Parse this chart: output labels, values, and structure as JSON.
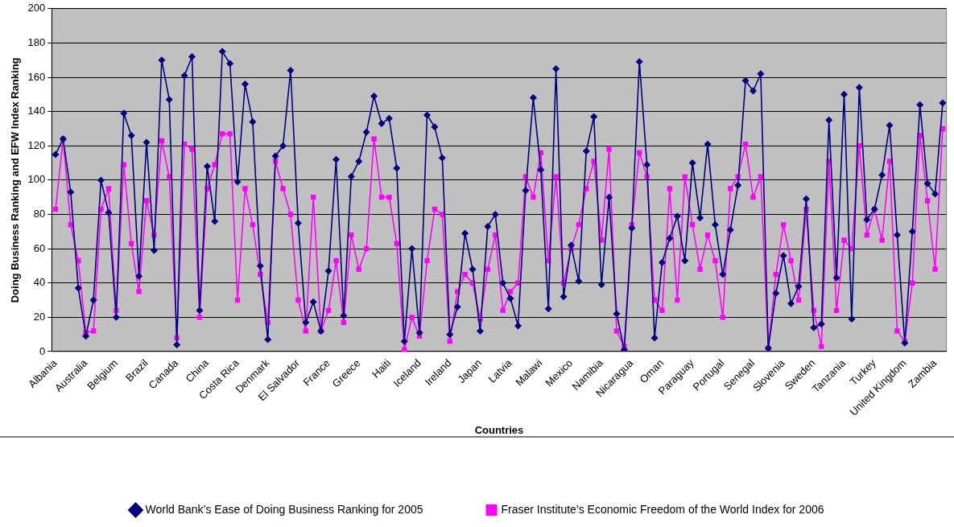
{
  "chart_data": {
    "type": "line",
    "xlabel": "Countries",
    "ylabel": "Doing Business Ranking and EFW Index Ranking",
    "categories": [
      "Albania",
      null,
      null,
      null,
      "Australia",
      null,
      null,
      null,
      "Belgium",
      null,
      null,
      null,
      "Brazil",
      null,
      null,
      null,
      "Canada",
      null,
      null,
      null,
      "China",
      null,
      null,
      null,
      "Costa Rica",
      null,
      null,
      null,
      "Denmark",
      null,
      null,
      null,
      "El Salvador",
      null,
      null,
      null,
      "France",
      null,
      null,
      null,
      "Greece",
      null,
      null,
      null,
      "Haiti",
      null,
      null,
      null,
      "Iceland",
      null,
      null,
      null,
      "Ireland",
      null,
      null,
      null,
      "Japan",
      null,
      null,
      null,
      "Latvia",
      null,
      null,
      null,
      "Malawi",
      null,
      null,
      null,
      "Mexico",
      null,
      null,
      null,
      "Namibia",
      null,
      null,
      null,
      "Nicaragua",
      null,
      null,
      null,
      "Oman",
      null,
      null,
      null,
      "Paraguay",
      null,
      null,
      null,
      "Portugal",
      null,
      null,
      null,
      "Senegal",
      null,
      null,
      null,
      "Slovenia",
      null,
      null,
      null,
      "Sweden",
      null,
      null,
      null,
      "Tanzania",
      null,
      null,
      null,
      "Turkey",
      null,
      null,
      null,
      "United Kingdom",
      null,
      null,
      null,
      "Zambia",
      null
    ],
    "series": [
      {
        "name": "World Bank’s Ease of Doing Business Ranking for 2005",
        "color": "#000080",
        "marker": "diamond",
        "values": [
          115,
          124,
          93,
          37,
          9,
          30,
          100,
          81,
          20,
          139,
          126,
          44,
          122,
          59,
          170,
          147,
          4,
          161,
          172,
          24,
          108,
          76,
          175,
          168,
          99,
          156,
          134,
          50,
          7,
          114,
          120,
          164,
          75,
          17,
          29,
          12,
          47,
          112,
          21,
          102,
          111,
          128,
          149,
          133,
          136,
          107,
          6,
          60,
          11,
          138,
          131,
          113,
          10,
          26,
          69,
          48,
          12,
          73,
          80,
          40,
          31,
          15,
          94,
          148,
          106,
          25,
          165,
          32,
          62,
          41,
          117,
          137,
          39,
          90,
          22,
          1,
          72,
          169,
          109,
          8,
          52,
          66,
          79,
          53,
          110,
          78,
          121,
          74,
          45,
          71,
          97,
          158,
          152,
          162,
          2,
          34,
          56,
          28,
          38,
          89,
          14,
          16,
          135,
          43,
          150,
          19,
          154,
          77,
          83,
          103,
          132,
          68,
          5,
          70,
          144,
          98,
          92,
          145
        ]
      },
      {
        "name": "Fraser Institute’s Economic Freedom of the World Index for 2006",
        "color": "#ff00ff",
        "marker": "square",
        "values": [
          83,
          124,
          74,
          53,
          11,
          12,
          83,
          95,
          24,
          109,
          63,
          35,
          88,
          68,
          123,
          102,
          8,
          121,
          118,
          20,
          95,
          109,
          127,
          127,
          30,
          95,
          74,
          45,
          17,
          111,
          95,
          80,
          30,
          12,
          90,
          12,
          24,
          53,
          17,
          68,
          48,
          60,
          124,
          90,
          90,
          63,
          1,
          20,
          9,
          53,
          83,
          80,
          6,
          35,
          45,
          40,
          19,
          48,
          68,
          24,
          35,
          40,
          102,
          90,
          116,
          53,
          102,
          40,
          60,
          74,
          95,
          111,
          65,
          118,
          12,
          3,
          74,
          116,
          102,
          30,
          24,
          95,
          30,
          102,
          74,
          48,
          68,
          53,
          20,
          95,
          102,
          121,
          90,
          102,
          2,
          45,
          74,
          53,
          30,
          83,
          24,
          3,
          111,
          24,
          65,
          60,
          120,
          68,
          83,
          65,
          111,
          12,
          6,
          40,
          126,
          88,
          48,
          130
        ]
      }
    ],
    "ylim": [
      0,
      200
    ],
    "yticks": [
      0,
      20,
      40,
      60,
      80,
      100,
      120,
      140,
      160,
      180,
      200
    ],
    "grid": "y",
    "legend": "bottom"
  }
}
